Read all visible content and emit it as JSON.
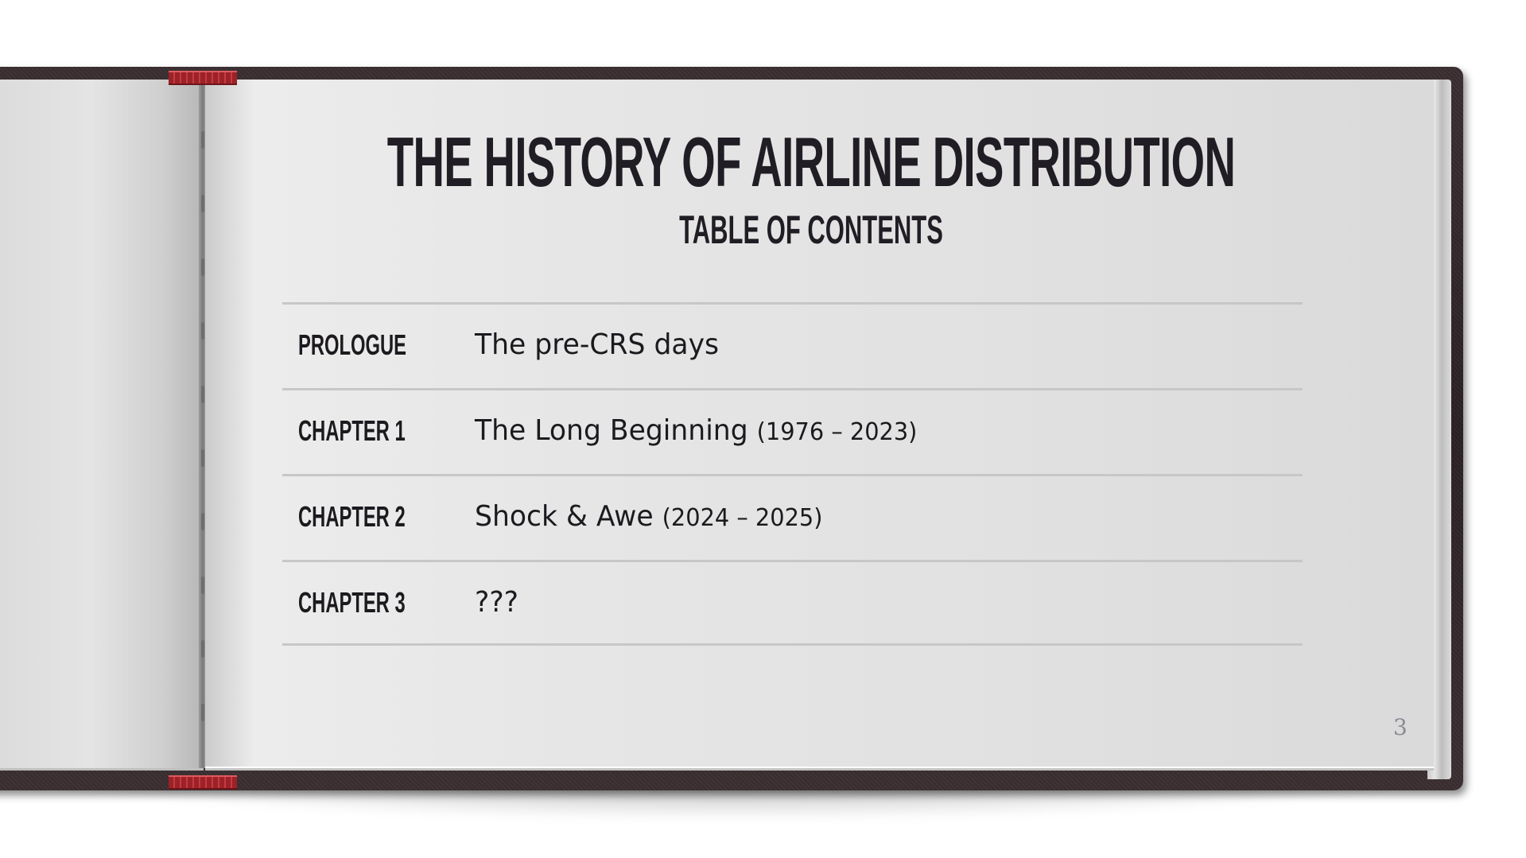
{
  "book": {
    "title": "THE HISTORY OF AIRLINE DISTRIBUTION",
    "subtitle": "TABLE OF CONTENTS",
    "page_number": "3"
  },
  "toc": [
    {
      "label": "PROLOGUE",
      "text": "The pre-CRS days",
      "years": ""
    },
    {
      "label": "CHAPTER 1",
      "text": "The Long Beginning ",
      "years": "(1976 – 2023)"
    },
    {
      "label": "CHAPTER 2",
      "text": "Shock & Awe ",
      "years": "(2024 – 2025)"
    },
    {
      "label": "CHAPTER 3",
      "text": "???",
      "years": ""
    }
  ],
  "colors": {
    "text": "#211d24",
    "cover": "#2a2022",
    "ribbon": "#9b2228",
    "page": "#e4e4e4",
    "rule": "#c7c7c9",
    "page_number": "#8a8a96"
  }
}
